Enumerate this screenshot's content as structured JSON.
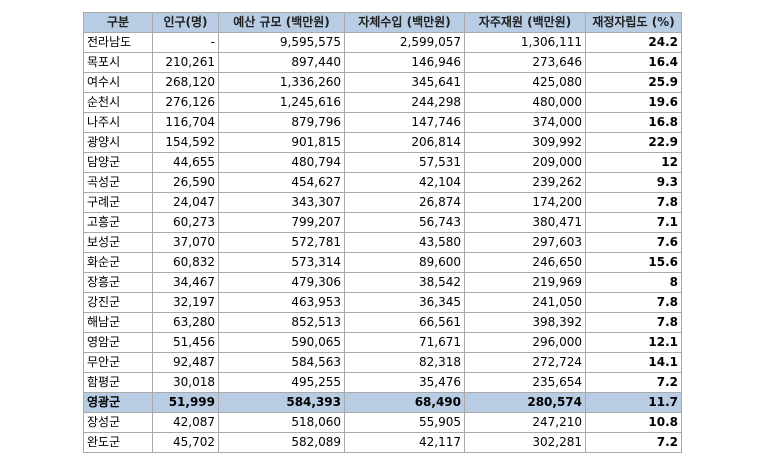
{
  "table": {
    "headers": [
      "구분",
      "인구(명)",
      "예산 규모 (백만원)",
      "자체수입 (백만원)",
      "자주재원 (백만원)",
      "재정자립도 (%)"
    ],
    "highlight_color": "#b8cce4",
    "highlighted_row": "영광군",
    "rows": [
      [
        "전라남도",
        "-",
        "9,595,575",
        "2,599,057",
        "1,306,111",
        "24.2"
      ],
      [
        "목포시",
        "210,261",
        "897,440",
        "146,946",
        "273,646",
        "16.4"
      ],
      [
        "여수시",
        "268,120",
        "1,336,260",
        "345,641",
        "425,080",
        "25.9"
      ],
      [
        "순천시",
        "276,126",
        "1,245,616",
        "244,298",
        "480,000",
        "19.6"
      ],
      [
        "나주시",
        "116,704",
        "879,796",
        "147,746",
        "374,000",
        "16.8"
      ],
      [
        "광양시",
        "154,592",
        "901,815",
        "206,814",
        "309,992",
        "22.9"
      ],
      [
        "담양군",
        "44,655",
        "480,794",
        "57,531",
        "209,000",
        "12"
      ],
      [
        "곡성군",
        "26,590",
        "454,627",
        "42,104",
        "239,262",
        "9.3"
      ],
      [
        "구례군",
        "24,047",
        "343,307",
        "26,874",
        "174,200",
        "7.8"
      ],
      [
        "고흥군",
        "60,273",
        "799,207",
        "56,743",
        "380,471",
        "7.1"
      ],
      [
        "보성군",
        "37,070",
        "572,781",
        "43,580",
        "297,603",
        "7.6"
      ],
      [
        "화순군",
        "60,832",
        "573,314",
        "89,600",
        "246,650",
        "15.6"
      ],
      [
        "장흥군",
        "34,467",
        "479,306",
        "38,542",
        "219,969",
        "8"
      ],
      [
        "강진군",
        "32,197",
        "463,953",
        "36,345",
        "241,050",
        "7.8"
      ],
      [
        "해남군",
        "63,280",
        "852,513",
        "66,561",
        "398,392",
        "7.8"
      ],
      [
        "영암군",
        "51,456",
        "590,065",
        "71,671",
        "296,000",
        "12.1"
      ],
      [
        "무안군",
        "92,487",
        "584,563",
        "82,318",
        "272,724",
        "14.1"
      ],
      [
        "함평군",
        "30,018",
        "495,255",
        "35,476",
        "235,654",
        "7.2"
      ],
      [
        "영광군",
        "51,999",
        "584,393",
        "68,490",
        "280,574",
        "11.7"
      ],
      [
        "장성군",
        "42,087",
        "518,060",
        "55,905",
        "247,210",
        "10.8"
      ],
      [
        "완도군",
        "45,702",
        "582,089",
        "42,117",
        "302,281",
        "7.2"
      ]
    ]
  }
}
